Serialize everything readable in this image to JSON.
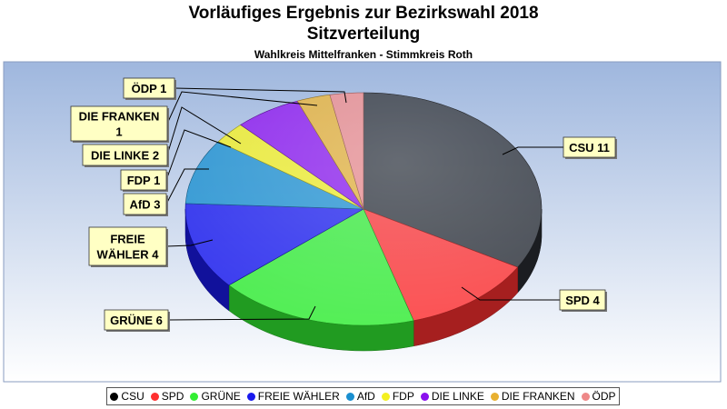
{
  "title": "Vorläufiges Ergebnis zur Bezirkswahl 2018",
  "subtitle": "Sitzverteilung",
  "caption": "Wahlkreis Mittelfranken - Stimmkreis Roth",
  "chart_data": {
    "type": "pie",
    "title": "Vorläufiges Ergebnis zur Bezirkswahl 2018",
    "subtitle": "Sitzverteilung",
    "legend_position": "bottom",
    "slices": [
      {
        "name": "CSU",
        "value": 11,
        "label": "CSU 11",
        "color": "#2a2d33"
      },
      {
        "name": "SPD",
        "value": 4,
        "label": "SPD 4",
        "color": "#ff3030"
      },
      {
        "name": "GRÜNE",
        "value": 6,
        "label": "GRÜNE 6",
        "color": "#33ee33"
      },
      {
        "name": "FREIE WÄHLER",
        "value": 4,
        "label": "FREIE WÄHLER 4",
        "color": "#1a1aee"
      },
      {
        "name": "AfD",
        "value": 3,
        "label": "AfD 3",
        "color": "#1a8fd0"
      },
      {
        "name": "FDP",
        "value": 1,
        "label": "FDP 1",
        "color": "#f4f020"
      },
      {
        "name": "DIE LINKE",
        "value": 2,
        "label": "DIE LINKE 2",
        "color": "#8a10ee"
      },
      {
        "name": "DIE FRANKEN",
        "value": 1,
        "label": "DIE FRANKEN 1",
        "color": "#e8b030"
      },
      {
        "name": "ÖDP",
        "value": 1,
        "label": "ÖDP 1",
        "color": "#ee8888"
      }
    ]
  }
}
